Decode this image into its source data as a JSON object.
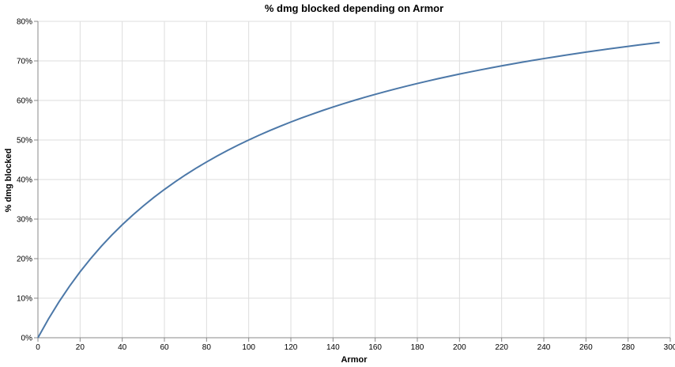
{
  "chart_data": {
    "type": "line",
    "title": "% dmg blocked depending on Armor",
    "xlabel": "Armor",
    "ylabel": "% dmg blocked",
    "xlim": [
      0,
      300
    ],
    "ylim": [
      0,
      0.8
    ],
    "x_ticks": [
      "0",
      "20",
      "40",
      "60",
      "80",
      "100",
      "120",
      "140",
      "160",
      "180",
      "200",
      "220",
      "240",
      "260",
      "280",
      "300"
    ],
    "y_ticks": [
      "0%",
      "10%",
      "20%",
      "30%",
      "40%",
      "50%",
      "60%",
      "70%",
      "80%"
    ],
    "grid": true,
    "series": [
      {
        "color": "#4c78a8",
        "x": [
          0,
          5,
          10,
          15,
          20,
          25,
          30,
          35,
          40,
          45,
          50,
          55,
          60,
          65,
          70,
          75,
          80,
          85,
          90,
          95,
          100,
          105,
          110,
          115,
          120,
          125,
          130,
          135,
          140,
          145,
          150,
          155,
          160,
          165,
          170,
          175,
          180,
          185,
          190,
          195,
          200,
          205,
          210,
          215,
          220,
          225,
          230,
          235,
          240,
          245,
          250,
          255,
          260,
          265,
          270,
          275,
          280,
          285,
          290,
          295
        ],
        "y": [
          0,
          0.0476,
          0.0909,
          0.1304,
          0.1667,
          0.2,
          0.2308,
          0.2593,
          0.2857,
          0.3103,
          0.3333,
          0.3548,
          0.375,
          0.3939,
          0.4118,
          0.4286,
          0.4444,
          0.4595,
          0.4737,
          0.4872,
          0.5,
          0.5122,
          0.5238,
          0.5349,
          0.5455,
          0.5556,
          0.5652,
          0.5745,
          0.5833,
          0.5918,
          0.6,
          0.6078,
          0.6154,
          0.6226,
          0.6296,
          0.6364,
          0.6429,
          0.6491,
          0.6552,
          0.661,
          0.6667,
          0.6721,
          0.6774,
          0.6825,
          0.6875,
          0.6923,
          0.697,
          0.7015,
          0.7059,
          0.7101,
          0.7143,
          0.7183,
          0.7222,
          0.726,
          0.7297,
          0.7333,
          0.7368,
          0.7403,
          0.7436,
          0.7468
        ]
      }
    ]
  }
}
